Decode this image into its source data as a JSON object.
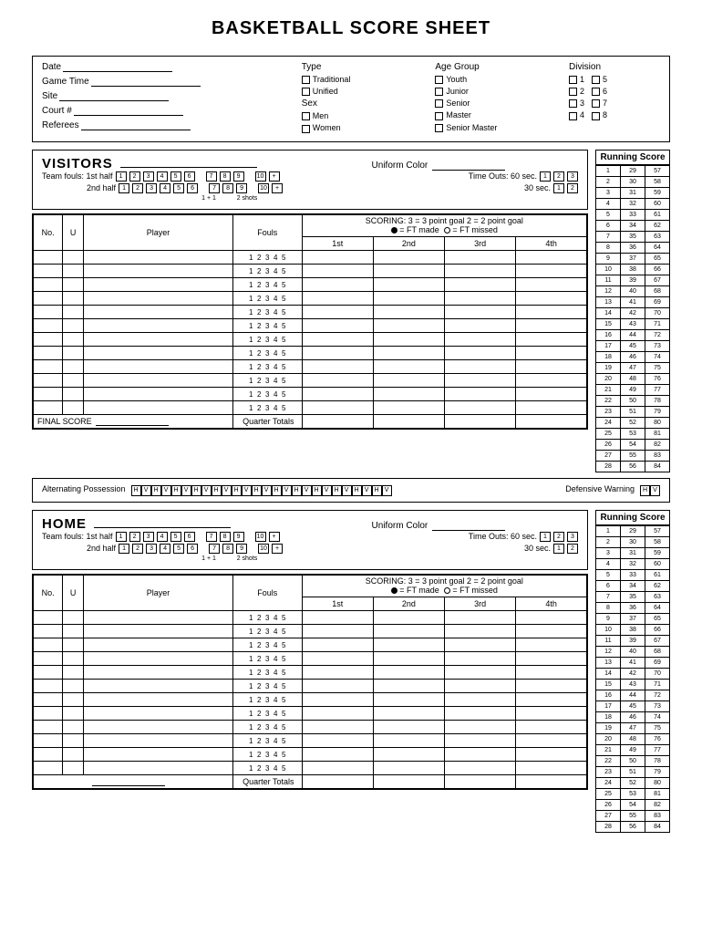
{
  "title": "BASKETBALL SCORE SHEET",
  "gameInfo": {
    "fields": [
      "Date",
      "Game Time",
      "Site",
      "Court #",
      "Referees"
    ],
    "type": {
      "label": "Type",
      "options": [
        "Traditional",
        "Unified"
      ]
    },
    "sex": {
      "label": "Sex",
      "options": [
        "Men",
        "Women"
      ]
    },
    "ageGroup": {
      "label": "Age Group",
      "options": [
        "Youth",
        "Junior",
        "Senior",
        "Master",
        "Senior Master"
      ]
    },
    "division": {
      "label": "Division",
      "left": [
        "1",
        "2",
        "3",
        "4"
      ],
      "right": [
        "5",
        "6",
        "7",
        "8"
      ]
    }
  },
  "teams": {
    "visitors": {
      "label": "VISITORS",
      "uniformLabel": "Uniform Color"
    },
    "home": {
      "label": "HOME",
      "uniformLabel": "Uniform Color"
    }
  },
  "fouls": {
    "teamFoulsLabel": "Team fouls:",
    "half1": "1st half",
    "half2": "2nd half",
    "boxes1": [
      "1",
      "2",
      "3",
      "4",
      "5",
      "6",
      "7",
      "8",
      "9",
      "10",
      "+"
    ],
    "boxes2": [
      "1",
      "2",
      "3",
      "4",
      "5",
      "6",
      "7",
      "8",
      "9",
      "10",
      "+"
    ],
    "subLabel1": "1 + 1",
    "subLabel2": "2 shots"
  },
  "timeouts": {
    "label": "Time Outs:",
    "t60": "60 sec.",
    "t30": "30 sec.",
    "boxes60": [
      "1",
      "2",
      "3"
    ],
    "boxes30": [
      "1",
      "2"
    ]
  },
  "playerTable": {
    "headers": {
      "no": "No.",
      "u": "U",
      "player": "Player",
      "fouls": "Fouls"
    },
    "scoring": {
      "line1": "SCORING: 3 = 3 point goal   2 = 2 point goal",
      "ftMade": "= FT made",
      "ftMissed": "= FT missed",
      "quarters": [
        "1st",
        "2nd",
        "3rd",
        "4th"
      ]
    },
    "foulNums": [
      "1",
      "2",
      "3",
      "4",
      "5"
    ],
    "rows": 12,
    "finalScore": "FINAL SCORE",
    "quarterTotals": "Quarter Totals"
  },
  "altPossession": {
    "label": "Alternating Possession",
    "boxes": [
      "H",
      "V",
      "H",
      "V",
      "H",
      "V",
      "H",
      "V",
      "H",
      "V",
      "H",
      "V",
      "H",
      "V",
      "H",
      "V",
      "H",
      "V",
      "H",
      "V",
      "H",
      "V",
      "H",
      "V",
      "H",
      "V"
    ],
    "defWarning": "Defensive Warning",
    "defBoxes": [
      "H",
      "V"
    ]
  },
  "runningScore": {
    "label": "Running Score",
    "cols": 3,
    "rows": 28,
    "start": [
      1,
      29,
      57
    ]
  },
  "colors": {
    "border": "#000000",
    "bg": "#ffffff"
  }
}
